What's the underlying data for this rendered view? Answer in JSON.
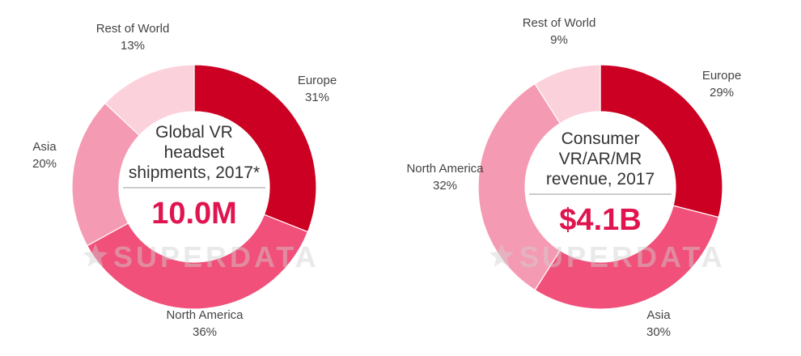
{
  "watermark": "SUPERDATA",
  "chart_data": [
    {
      "type": "pie",
      "donut": true,
      "center_title": [
        "Global VR",
        "headset",
        "shipments, 2017*"
      ],
      "center_value": "10.0M",
      "slices": [
        {
          "label": "Europe",
          "value": 31,
          "display": "31%",
          "color": "#cc0022"
        },
        {
          "label": "North America",
          "value": 36,
          "display": "36%",
          "color": "#f0507a"
        },
        {
          "label": "Asia",
          "value": 20,
          "display": "20%",
          "color": "#f59ab3"
        },
        {
          "label": "Rest of World",
          "value": 13,
          "display": "13%",
          "color": "#fbd1dc"
        }
      ]
    },
    {
      "type": "pie",
      "donut": true,
      "center_title": [
        "Consumer",
        "VR/AR/MR",
        "revenue, 2017"
      ],
      "center_value": "$4.1B",
      "slices": [
        {
          "label": "Europe",
          "value": 29,
          "display": "29%",
          "color": "#cc0022"
        },
        {
          "label": "Asia",
          "value": 30,
          "display": "30%",
          "color": "#f0507a"
        },
        {
          "label": "North America",
          "value": 32,
          "display": "32%",
          "color": "#f59ab3"
        },
        {
          "label": "Rest of World",
          "value": 9,
          "display": "9%",
          "color": "#fbd1dc"
        }
      ]
    }
  ],
  "colors": {
    "accent": "#e0144e",
    "text": "#444444",
    "divider": "#999999"
  }
}
